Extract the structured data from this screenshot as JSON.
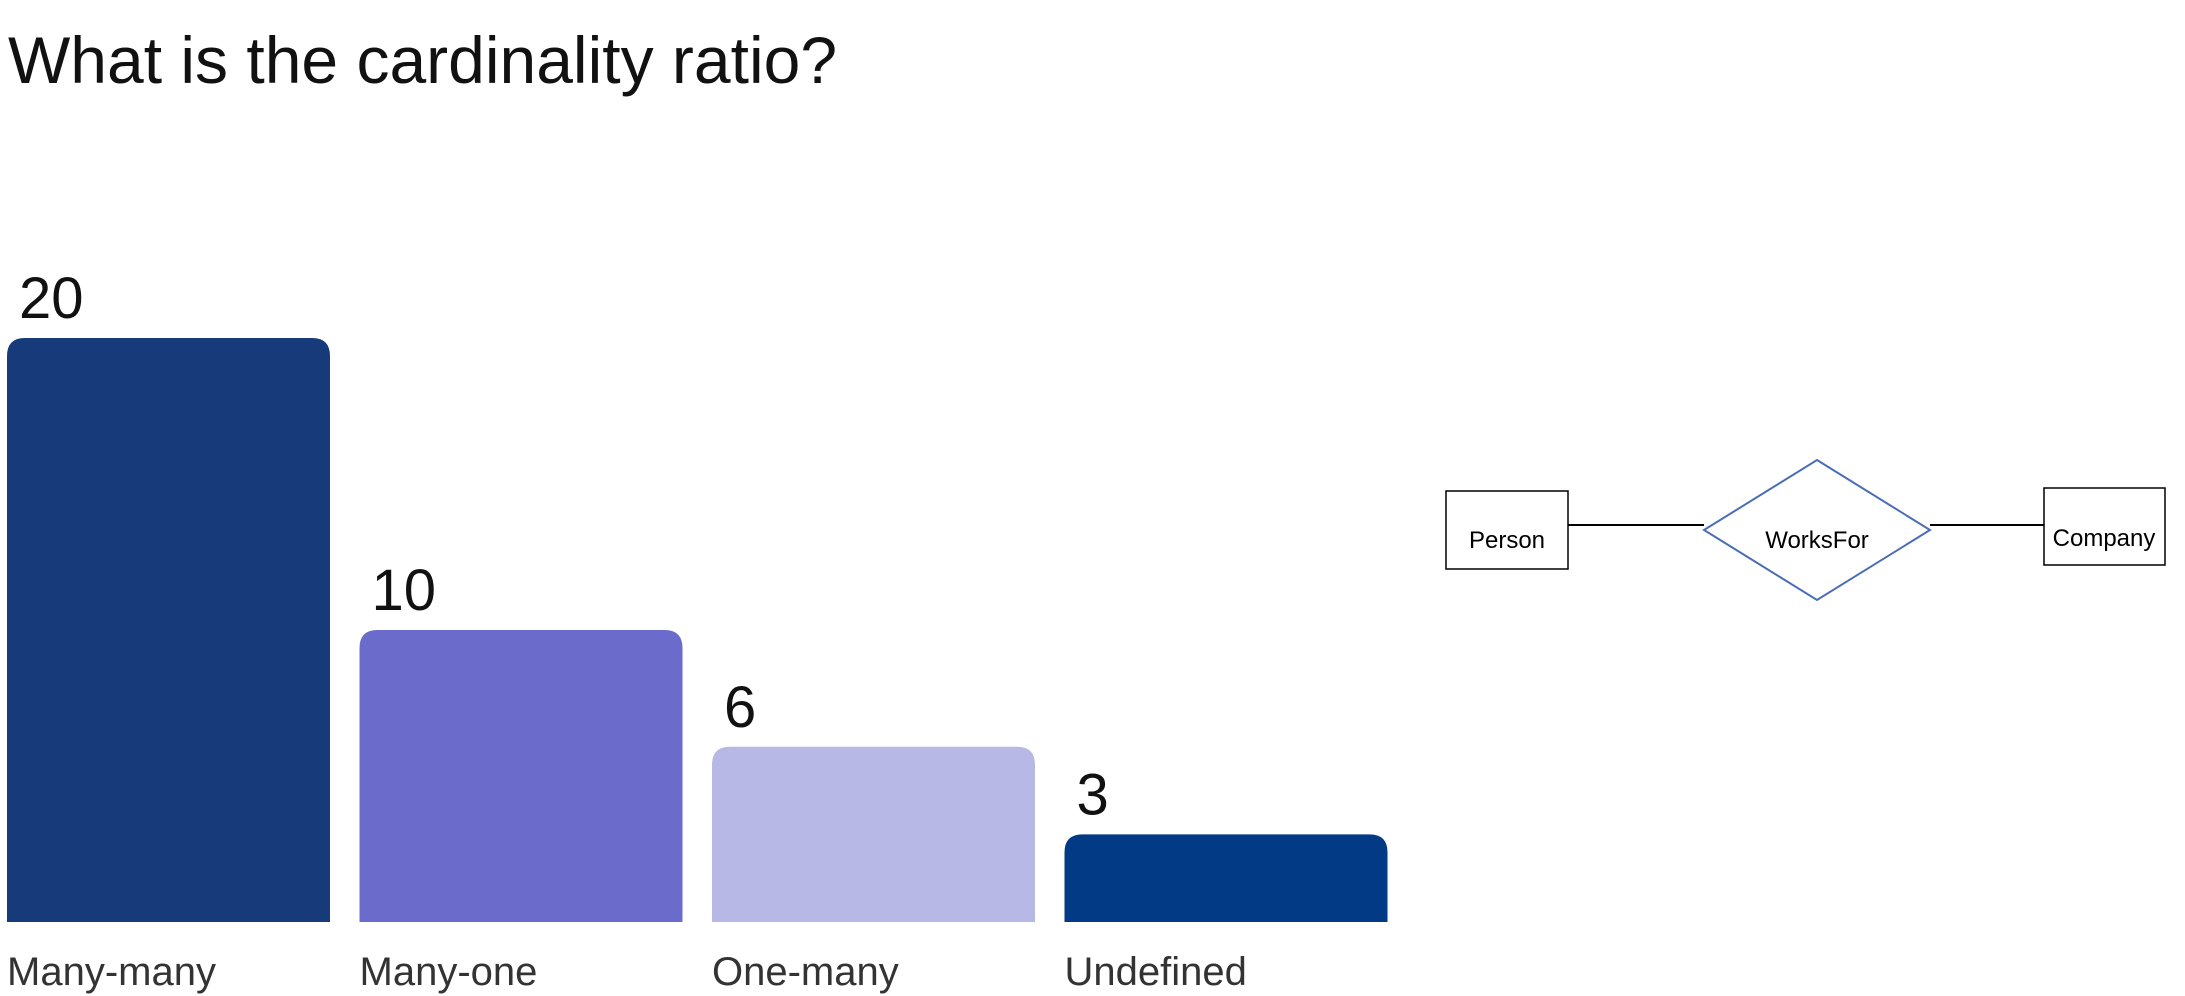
{
  "question": {
    "title": "What is the cardinality ratio?"
  },
  "chart_data": {
    "type": "bar",
    "title": "What is the cardinality ratio?",
    "categories": [
      "Many-many",
      "Many-one",
      "One-many",
      "Undefined"
    ],
    "values": [
      20,
      10,
      6,
      3
    ],
    "colors": [
      "#173b7a",
      "#6b6bcc",
      "#b8b8e6",
      "#033a85"
    ],
    "ylim": [
      0,
      20
    ],
    "grid": false
  },
  "diagram": {
    "entity_left": "Person",
    "relationship": "WorksFor",
    "entity_right": "Company",
    "relationship_border_color": "#4a6db8"
  }
}
